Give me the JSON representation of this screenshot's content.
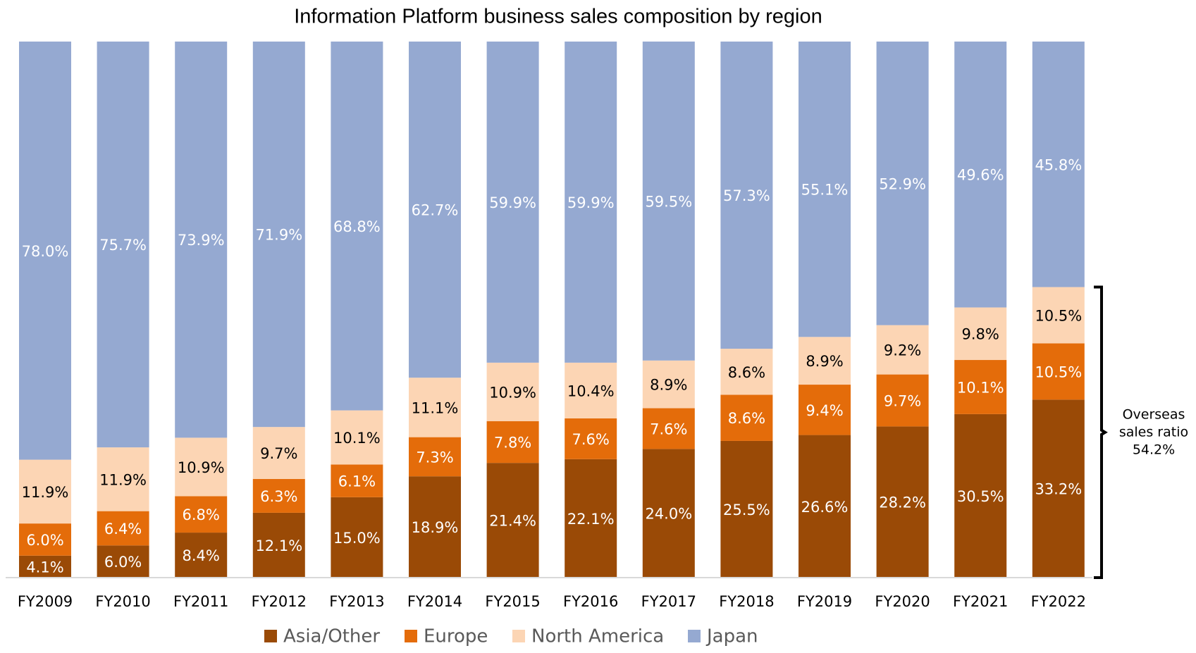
{
  "chart_data": {
    "type": "stacked_bar",
    "title": "Information Platform business sales composition by region",
    "categories": [
      "FY2009",
      "FY2010",
      "FY2011",
      "FY2012",
      "FY2013",
      "FY2014",
      "FY2015",
      "FY2016",
      "FY2017",
      "FY2018",
      "FY2019",
      "FY2020",
      "FY2021",
      "FY2022"
    ],
    "ylim": [
      0,
      100
    ],
    "series": [
      {
        "name": "Asia/Other",
        "color": "#9a4a06",
        "label_color": "#ffffff",
        "values": [
          4.1,
          6.0,
          8.4,
          12.1,
          15.0,
          18.9,
          21.4,
          22.1,
          24.0,
          25.5,
          26.6,
          28.2,
          30.5,
          33.2
        ],
        "value_labels": [
          "4.1%",
          "6.0%",
          "8.4%",
          "12.1%",
          "15.0%",
          "18.9%",
          "21.4%",
          "22.1%",
          "24.0%",
          "25.5%",
          "26.6%",
          "28.2%",
          "30.5%",
          "33.2%"
        ]
      },
      {
        "name": "Europe",
        "color": "#e46c0a",
        "label_color": "#ffffff",
        "values": [
          6.0,
          6.4,
          6.8,
          6.3,
          6.1,
          7.3,
          7.8,
          7.6,
          7.6,
          8.6,
          9.4,
          9.7,
          10.1,
          10.5
        ],
        "value_labels": [
          "6.0%",
          "6.4%",
          "6.8%",
          "6.3%",
          "6.1%",
          "7.3%",
          "7.8%",
          "7.6%",
          "7.6%",
          "8.6%",
          "9.4%",
          "9.7%",
          "10.1%",
          "10.5%"
        ]
      },
      {
        "name": "North America",
        "color": "#fcd5b4",
        "label_color": "#000000",
        "values": [
          11.9,
          11.9,
          10.9,
          9.7,
          10.1,
          11.1,
          10.9,
          10.4,
          8.9,
          8.6,
          8.9,
          9.2,
          9.8,
          10.5
        ],
        "value_labels": [
          "11.9%",
          "11.9%",
          "10.9%",
          "9.7%",
          "10.1%",
          "11.1%",
          "10.9%",
          "10.4%",
          "8.9%",
          "8.6%",
          "8.9%",
          "9.2%",
          "9.8%",
          "10.5%"
        ]
      },
      {
        "name": "Japan",
        "color": "#95a9d1",
        "label_color": "#ffffff",
        "values": [
          78.0,
          75.7,
          73.9,
          71.9,
          68.8,
          62.7,
          59.9,
          59.9,
          59.5,
          57.3,
          55.1,
          52.9,
          49.6,
          45.8
        ],
        "value_labels": [
          "78.0%",
          "75.7%",
          "73.9%",
          "71.9%",
          "68.8%",
          "62.7%",
          "59.9%",
          "59.9%",
          "59.5%",
          "57.3%",
          "55.1%",
          "52.9%",
          "49.6%",
          "45.8%"
        ]
      }
    ],
    "annotation": [
      "Overseas",
      "sales ratio",
      "54.2%"
    ]
  }
}
